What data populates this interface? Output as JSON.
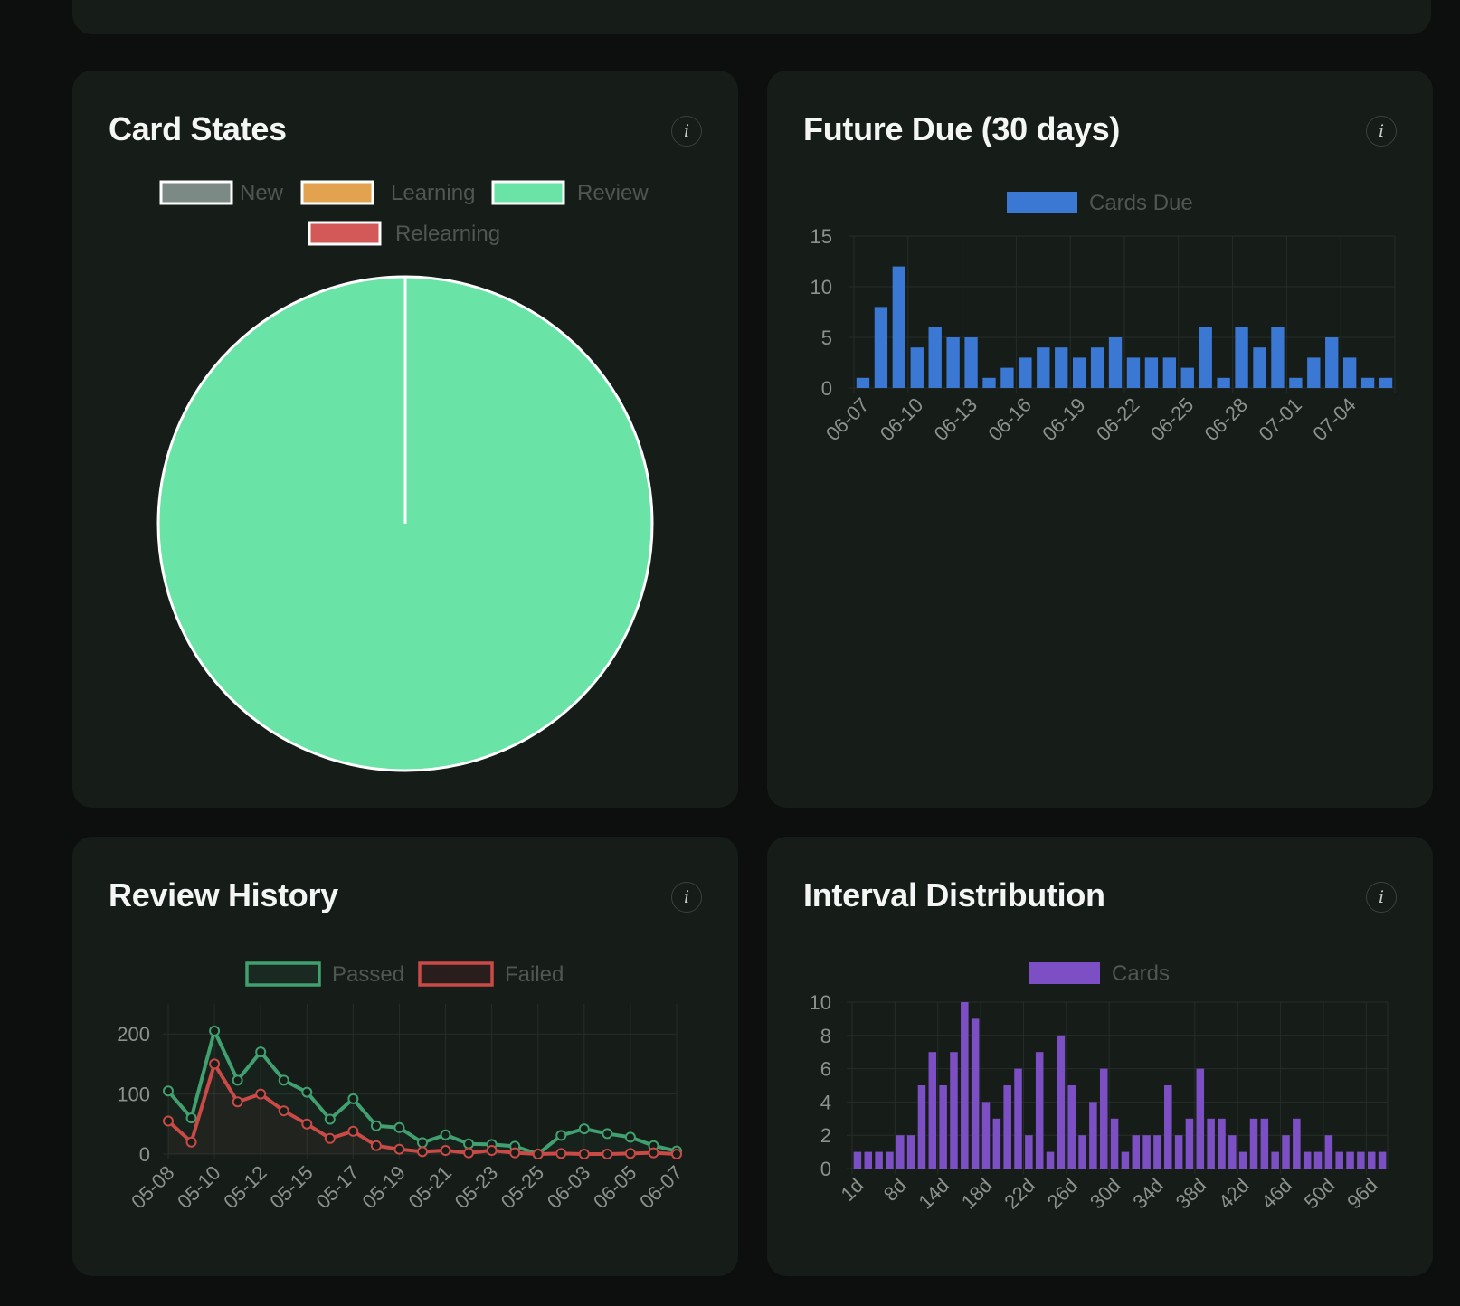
{
  "colors": {
    "new": "#7b8a84",
    "learning": "#e3a24e",
    "review": "#6ae3a7",
    "relearning": "#d35858",
    "due": "#3a78d4",
    "passed": "#41a06f",
    "failed": "#c94a46",
    "interval": "#7d4fc4"
  },
  "icons": {
    "info": "i"
  },
  "cards": {
    "card_states": {
      "title": "Card States"
    },
    "future_due": {
      "title": "Future Due (30 days)"
    },
    "review_history": {
      "title": "Review History"
    },
    "interval_distribution": {
      "title": "Interval Distribution"
    }
  },
  "chart_data": [
    {
      "type": "pie",
      "title": "Card States",
      "legend": [
        "New",
        "Learning",
        "Review",
        "Relearning"
      ],
      "values": [
        0,
        0,
        100,
        0
      ],
      "legend_position": "top"
    },
    {
      "type": "bar",
      "title": "Future Due (30 days)",
      "series": [
        {
          "name": "Cards Due",
          "x": [
            "06-07",
            "06-08",
            "06-09",
            "06-10",
            "06-11",
            "06-12",
            "06-13",
            "06-14",
            "06-15",
            "06-16",
            "06-17",
            "06-18",
            "06-19",
            "06-20",
            "06-21",
            "06-22",
            "06-23",
            "06-24",
            "06-25",
            "06-26",
            "06-27",
            "06-28",
            "06-29",
            "06-30",
            "07-01",
            "07-02",
            "07-03",
            "07-04",
            "07-05",
            "07-06"
          ],
          "values": [
            1,
            8,
            12,
            4,
            6,
            5,
            5,
            1,
            2,
            3,
            4,
            4,
            3,
            4,
            5,
            3,
            3,
            3,
            2,
            6,
            1,
            6,
            4,
            6,
            1,
            3,
            5,
            3,
            1,
            1
          ]
        }
      ],
      "x_tick_labels": [
        "06-07",
        "06-10",
        "06-13",
        "06-16",
        "06-19",
        "06-22",
        "06-25",
        "06-28",
        "07-01",
        "07-04"
      ],
      "y_ticks": [
        0,
        5,
        10,
        15
      ],
      "ylim": [
        0,
        15
      ],
      "grid": true,
      "legend_position": "top"
    },
    {
      "type": "line",
      "title": "Review History",
      "categories": [
        "05-08",
        "05-09",
        "05-10",
        "05-11",
        "05-12",
        "05-13",
        "05-15",
        "05-16",
        "05-17",
        "05-18",
        "05-19",
        "05-20",
        "05-21",
        "05-22",
        "05-23",
        "05-24",
        "05-25",
        "05-26",
        "06-03",
        "06-04",
        "06-05",
        "06-06",
        "06-07"
      ],
      "x_tick_labels": [
        "05-08",
        "05-10",
        "05-12",
        "05-15",
        "05-17",
        "05-19",
        "05-21",
        "05-23",
        "05-25",
        "06-03",
        "06-05",
        "06-07"
      ],
      "series": [
        {
          "name": "Passed",
          "values": [
            105,
            60,
            205,
            123,
            170,
            123,
            103,
            58,
            92,
            47,
            44,
            19,
            32,
            17,
            16,
            13,
            0,
            31,
            42,
            34,
            28,
            14,
            5
          ]
        },
        {
          "name": "Failed",
          "values": [
            55,
            20,
            150,
            87,
            100,
            72,
            50,
            26,
            38,
            14,
            8,
            4,
            6,
            2,
            6,
            2,
            0,
            1,
            0,
            0,
            1,
            2,
            0
          ]
        }
      ],
      "y_ticks": [
        0,
        100,
        200
      ],
      "ylim": [
        0,
        250
      ],
      "fill": "origin",
      "grid": true,
      "legend_position": "top"
    },
    {
      "type": "bar",
      "title": "Interval Distribution",
      "series": [
        {
          "name": "Cards",
          "values": [
            1,
            1,
            1,
            1,
            2,
            2,
            5,
            7,
            5,
            7,
            10,
            9,
            4,
            3,
            5,
            6,
            2,
            7,
            1,
            8,
            5,
            2,
            4,
            6,
            3,
            1,
            2,
            2,
            2,
            5,
            2,
            3,
            6,
            3,
            3,
            2,
            1,
            3,
            3,
            1,
            2,
            3,
            1,
            1,
            2,
            1,
            1,
            1,
            1,
            1
          ]
        }
      ],
      "x_tick_labels": [
        "1d",
        "8d",
        "14d",
        "18d",
        "22d",
        "26d",
        "30d",
        "34d",
        "38d",
        "42d",
        "46d",
        "50d",
        "96d"
      ],
      "y_ticks": [
        0,
        2,
        4,
        6,
        8,
        10
      ],
      "ylim": [
        0,
        10
      ],
      "grid": true,
      "legend_position": "top"
    }
  ]
}
